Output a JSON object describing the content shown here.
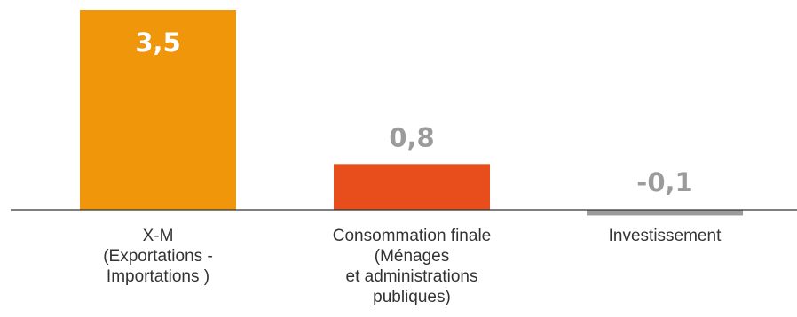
{
  "chart_data": {
    "type": "bar",
    "categories": [
      [
        "X-M",
        "(Exportations -",
        "Importations )"
      ],
      [
        "Consommation finale",
        "(Ménages",
        "et administrations",
        "publiques)"
      ],
      [
        "Investissement"
      ]
    ],
    "values": [
      3.5,
      0.8,
      -0.1
    ],
    "value_labels": [
      "3,5",
      "0,8",
      "-0,1"
    ],
    "colors": [
      "#F0960A",
      "#E84E1B",
      "#9B9B9B"
    ],
    "value_label_colors": [
      "#FFFFFF",
      "#9B9B9B",
      "#9B9B9B"
    ],
    "ylim": [
      -0.1,
      3.5
    ],
    "grid": false,
    "legend": "none"
  }
}
